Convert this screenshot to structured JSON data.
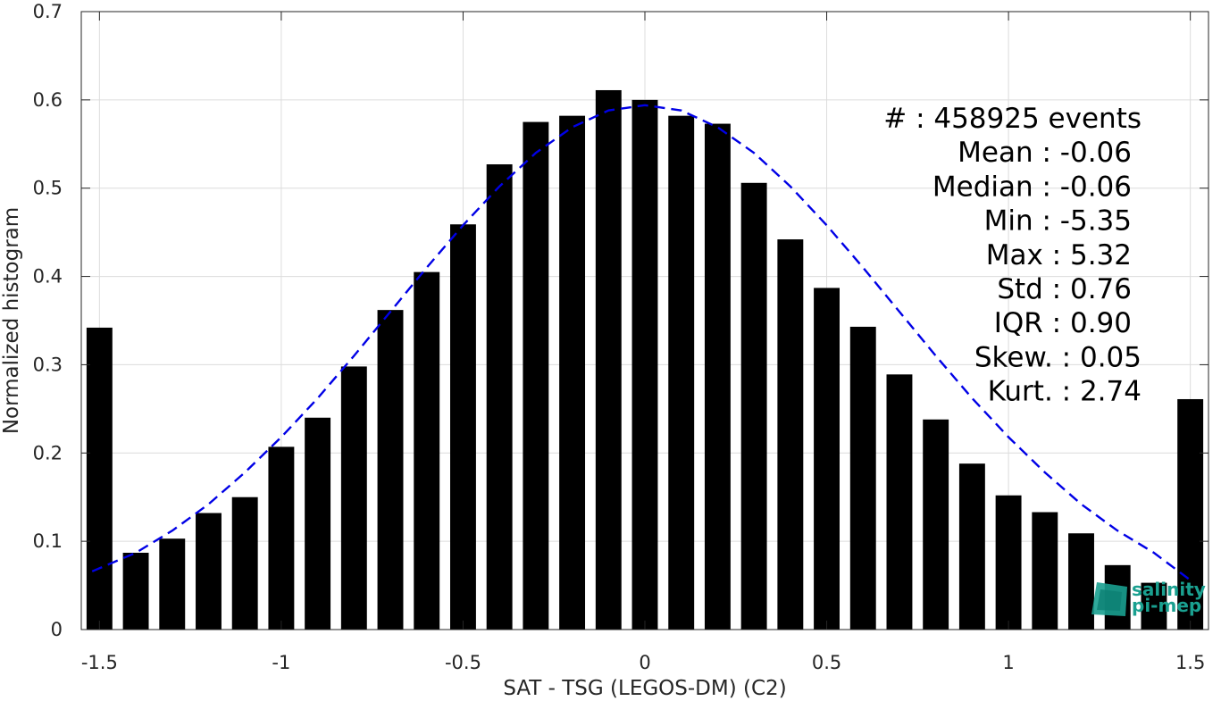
{
  "chart_data": {
    "type": "bar",
    "xlabel": "SAT - TSG (LEGOS-DM) (C2)",
    "ylabel": "Normalized histogram",
    "xlim": [
      -1.55,
      1.55
    ],
    "ylim": [
      0,
      0.7
    ],
    "xticks": [
      -1.5,
      -1,
      -0.5,
      0,
      0.5,
      1,
      1.5
    ],
    "xtick_labels": [
      "-1.5",
      "-1",
      "-0.5",
      "0",
      "0.5",
      "1",
      "1.5"
    ],
    "yticks": [
      0,
      0.1,
      0.2,
      0.3,
      0.4,
      0.5,
      0.6,
      0.7
    ],
    "ytick_labels": [
      "0",
      "0.1",
      "0.2",
      "0.3",
      "0.4",
      "0.5",
      "0.6",
      "0.7"
    ],
    "grid": true,
    "bar_color": "#000000",
    "x": [
      -1.5,
      -1.4,
      -1.3,
      -1.2,
      -1.1,
      -1.0,
      -0.9,
      -0.8,
      -0.7,
      -0.6,
      -0.5,
      -0.4,
      -0.3,
      -0.2,
      -0.1,
      0.0,
      0.1,
      0.2,
      0.3,
      0.4,
      0.5,
      0.6,
      0.7,
      0.8,
      0.9,
      1.0,
      1.1,
      1.2,
      1.3,
      1.4,
      1.5
    ],
    "values": [
      0.342,
      0.087,
      0.103,
      0.132,
      0.15,
      0.207,
      0.24,
      0.298,
      0.362,
      0.405,
      0.459,
      0.527,
      0.575,
      0.582,
      0.611,
      0.6,
      0.582,
      0.573,
      0.506,
      0.442,
      0.387,
      0.343,
      0.289,
      0.238,
      0.188,
      0.152,
      0.133,
      0.109,
      0.073,
      0.053,
      0.261
    ],
    "fit_curve": {
      "style": "dashed",
      "color": "#0000e6",
      "x": [
        -1.52,
        -1.4,
        -1.3,
        -1.2,
        -1.1,
        -1.0,
        -0.9,
        -0.8,
        -0.7,
        -0.6,
        -0.5,
        -0.4,
        -0.3,
        -0.2,
        -0.1,
        0.0,
        0.1,
        0.2,
        0.3,
        0.4,
        0.5,
        0.6,
        0.7,
        0.8,
        0.9,
        1.0,
        1.1,
        1.2,
        1.3,
        1.4,
        1.5
      ],
      "y": [
        0.066,
        0.087,
        0.112,
        0.142,
        0.178,
        0.218,
        0.262,
        0.31,
        0.36,
        0.41,
        0.458,
        0.502,
        0.54,
        0.569,
        0.588,
        0.594,
        0.588,
        0.569,
        0.54,
        0.502,
        0.458,
        0.41,
        0.36,
        0.31,
        0.262,
        0.218,
        0.178,
        0.142,
        0.112,
        0.087,
        0.056
      ]
    },
    "stats": [
      "#  : 458925 events",
      "Mean : -0.06",
      "Median : -0.06",
      "Min : -5.35",
      "Max : 5.32",
      "Std : 0.76",
      "IQR : 0.90",
      "Skew. : 0.05",
      "Kurt. : 2.74"
    ]
  },
  "logo": {
    "line1": "salinity",
    "line2": "pi-mep",
    "color": "#1aa090"
  }
}
